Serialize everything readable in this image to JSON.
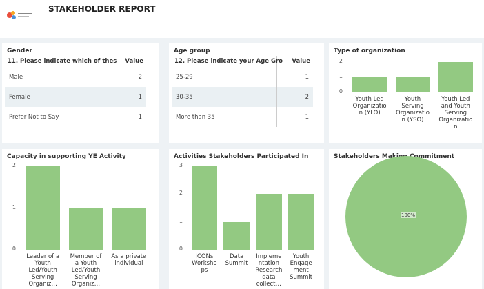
{
  "title": "STAKEHOLDER REPORT",
  "tables": [
    {
      "title": "Gender",
      "columns": [
        "11. Please indicate which of thes",
        "Value"
      ],
      "rows": [
        [
          "Male",
          2
        ],
        [
          "Female",
          1
        ],
        [
          "Prefer Not to Say",
          1
        ]
      ]
    },
    {
      "title": "Age group",
      "columns": [
        "12. Please indicate your Age Gro",
        "Value"
      ],
      "rows": [
        [
          "25-29",
          1
        ],
        [
          "30-35",
          2
        ],
        [
          "More than 35",
          1
        ]
      ]
    }
  ],
  "chart_data": [
    {
      "type": "bar",
      "title": "Type of organization",
      "categories": [
        "Youth Led Organization (YLO)",
        "Youth Serving Organization (YSO)",
        "Youth Led and Youth Serving Organization"
      ],
      "values": [
        1,
        1,
        2
      ],
      "color": "#93c982",
      "ylim": [
        0,
        2
      ],
      "yticks": [
        0,
        1,
        2
      ]
    },
    {
      "type": "bar",
      "title": "Capacity in supporting YE Activity",
      "categories": [
        "Leader of a Youth Led/Youth Serving Organiz…",
        "Member of a Youth Led/Youth Serving Organiz…",
        "As a private individual"
      ],
      "values": [
        2,
        1,
        1
      ],
      "color": "#93c982",
      "ylim": [
        0,
        2
      ],
      "yticks": [
        0,
        1,
        2
      ]
    },
    {
      "type": "bar",
      "title": "Activities Stakeholders Participated In",
      "categories": [
        "ICONs Workshops",
        "Data Summit",
        "Implementation Research data collect…",
        "Youth Engagement Summit"
      ],
      "values": [
        3,
        1,
        2,
        2
      ],
      "color": "#93c982",
      "ylim": [
        0,
        3
      ],
      "yticks": [
        0,
        1,
        2,
        3
      ]
    },
    {
      "type": "pie",
      "title": "Stakeholders Making Commitment",
      "values": [
        100
      ],
      "value_labels": [
        "100%"
      ],
      "color": "#93c982"
    }
  ]
}
